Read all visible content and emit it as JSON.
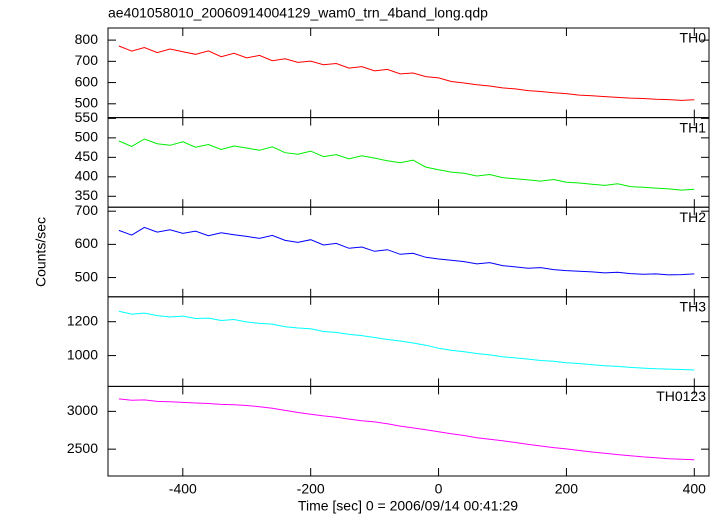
{
  "chart_data": {
    "type": "line",
    "title": "ae401058010_20060914004129_wam0_trn_4band_long.qdp",
    "xlabel": "Time [sec] 0 = 2006/09/14 00:41:29",
    "ylabel": "Counts/sec",
    "xlim": [
      -517,
      423
    ],
    "xticks": [
      -400,
      -200,
      0,
      200,
      400
    ],
    "x": [
      -500,
      -480,
      -460,
      -440,
      -420,
      -400,
      -380,
      -360,
      -340,
      -320,
      -300,
      -280,
      -260,
      -240,
      -220,
      -200,
      -180,
      -160,
      -140,
      -120,
      -100,
      -80,
      -60,
      -40,
      -20,
      0,
      20,
      40,
      60,
      80,
      100,
      120,
      140,
      160,
      180,
      200,
      220,
      240,
      260,
      280,
      300,
      320,
      340,
      360,
      380,
      400
    ],
    "series": [
      {
        "name": "TH0",
        "color": "#ff0000",
        "ylim": [
          435,
          857
        ],
        "yticks": [
          500,
          600,
          700,
          800
        ],
        "values": [
          772,
          748,
          765,
          741,
          758,
          745,
          733,
          749,
          722,
          738,
          716,
          728,
          703,
          712,
          695,
          701,
          684,
          690,
          668,
          675,
          655,
          662,
          641,
          645,
          628,
          622,
          605,
          598,
          590,
          584,
          575,
          570,
          562,
          558,
          552,
          548,
          541,
          538,
          534,
          530,
          527,
          525,
          521,
          520,
          516,
          519
        ]
      },
      {
        "name": "TH1",
        "color": "#00ee00",
        "ylim": [
          322,
          552
        ],
        "yticks": [
          350,
          400,
          450,
          500,
          550
        ],
        "values": [
          492,
          478,
          497,
          485,
          481,
          490,
          476,
          483,
          470,
          479,
          474,
          468,
          477,
          462,
          458,
          466,
          452,
          457,
          446,
          454,
          448,
          441,
          436,
          443,
          425,
          418,
          412,
          409,
          402,
          406,
          398,
          395,
          392,
          389,
          393,
          386,
          384,
          381,
          378,
          382,
          375,
          373,
          371,
          369,
          366,
          368
        ]
      },
      {
        "name": "TH2",
        "color": "#0000ff",
        "ylim": [
          442,
          712
        ],
        "yticks": [
          500,
          600,
          700
        ],
        "values": [
          642,
          628,
          651,
          637,
          644,
          633,
          640,
          626,
          635,
          629,
          624,
          618,
          627,
          612,
          606,
          614,
          598,
          603,
          588,
          592,
          579,
          584,
          570,
          573,
          561,
          556,
          552,
          548,
          541,
          545,
          536,
          532,
          528,
          530,
          524,
          521,
          519,
          517,
          514,
          516,
          512,
          510,
          511,
          508,
          509,
          511
        ]
      },
      {
        "name": "TH3",
        "color": "#00ffff",
        "ylim": [
          818,
          1347
        ],
        "yticks": [
          1000,
          1200
        ],
        "values": [
          1262,
          1245,
          1251,
          1236,
          1228,
          1233,
          1219,
          1221,
          1207,
          1213,
          1198,
          1190,
          1186,
          1170,
          1163,
          1158,
          1142,
          1137,
          1125,
          1118,
          1107,
          1095,
          1086,
          1074,
          1061,
          1043,
          1032,
          1022,
          1012,
          1004,
          993,
          986,
          979,
          971,
          966,
          958,
          953,
          946,
          940,
          936,
          930,
          926,
          922,
          920,
          918,
          915
        ]
      },
      {
        "name": "TH0123",
        "color": "#ff00ff",
        "ylim": [
          2145,
          3330
        ],
        "yticks": [
          2500,
          3000
        ],
        "values": [
          3165,
          3148,
          3152,
          3131,
          3127,
          3119,
          3110,
          3104,
          3092,
          3087,
          3078,
          3061,
          3040,
          3012,
          2985,
          2962,
          2940,
          2921,
          2898,
          2875,
          2860,
          2835,
          2805,
          2781,
          2756,
          2730,
          2703,
          2680,
          2652,
          2631,
          2610,
          2588,
          2563,
          2542,
          2521,
          2503,
          2482,
          2463,
          2447,
          2428,
          2413,
          2398,
          2386,
          2374,
          2366,
          2360
        ]
      }
    ]
  }
}
